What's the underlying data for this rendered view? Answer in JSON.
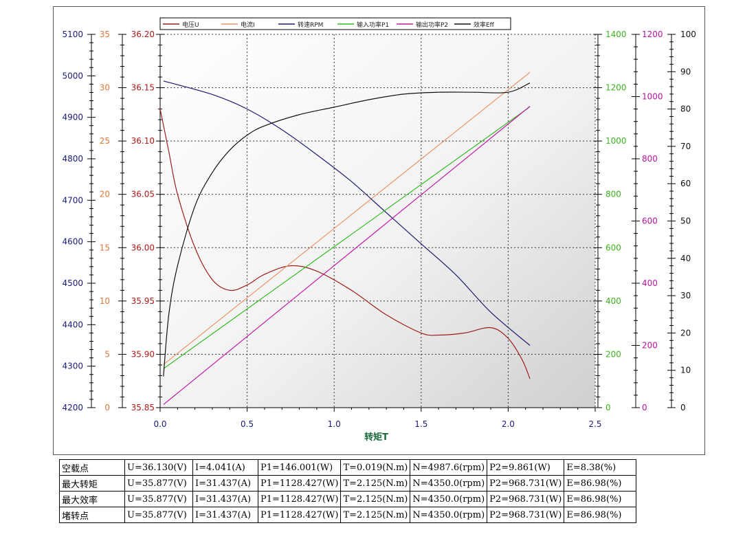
{
  "chart_data": {
    "type": "line",
    "xlabel": "转矩T",
    "xlim": [
      0,
      2.5
    ],
    "x_ticks": [
      "0.0",
      "0.5",
      "1.0",
      "1.5",
      "2.0",
      "2.5"
    ],
    "grid": true,
    "legend_position": "top",
    "axes": [
      {
        "id": "rpm",
        "color": "#1a1a7a",
        "range": [
          4200,
          5100
        ],
        "ticks": [
          "4200",
          "4300",
          "4400",
          "4500",
          "4600",
          "4700",
          "4800",
          "4900",
          "5000",
          "5100"
        ]
      },
      {
        "id": "current",
        "color": "#e07a3a",
        "range": [
          0,
          35
        ],
        "ticks": [
          "0",
          "5",
          "10",
          "15",
          "20",
          "25",
          "30",
          "35"
        ]
      },
      {
        "id": "voltage",
        "color": "#b01818",
        "range": [
          35.85,
          36.2
        ],
        "ticks": [
          "35.85",
          "35.90",
          "35.95",
          "36.00",
          "36.05",
          "36.10",
          "36.15",
          "36.20"
        ]
      },
      {
        "id": "p1",
        "color": "#3cb31e",
        "range": [
          0,
          1400
        ],
        "ticks": [
          "0",
          "200",
          "400",
          "600",
          "800",
          "1000",
          "1200",
          "1400"
        ]
      },
      {
        "id": "p2",
        "color": "#b5139e",
        "range": [
          0,
          1200
        ],
        "ticks": [
          "0",
          "200",
          "400",
          "600",
          "800",
          "1000",
          "1200"
        ]
      },
      {
        "id": "eff",
        "color": "#111111",
        "range": [
          0,
          100
        ],
        "ticks": [
          "0",
          "10",
          "20",
          "30",
          "40",
          "50",
          "60",
          "70",
          "80",
          "90",
          "100"
        ]
      }
    ],
    "series": [
      {
        "name": "电压U",
        "axis": "voltage",
        "color": "#9e1c1c",
        "x": [
          0.0,
          0.05,
          0.1,
          0.2,
          0.3,
          0.4,
          0.5,
          0.6,
          0.75,
          0.9,
          1.1,
          1.3,
          1.5,
          1.6,
          1.75,
          1.9,
          2.0,
          2.08,
          2.125
        ],
        "y": [
          36.13,
          36.09,
          36.05,
          36.0,
          35.97,
          35.96,
          35.965,
          35.975,
          35.983,
          35.978,
          35.96,
          35.937,
          35.92,
          35.918,
          35.92,
          35.925,
          35.915,
          35.895,
          35.877
        ]
      },
      {
        "name": "电流I",
        "axis": "current",
        "color": "#e8956a",
        "x": [
          0.019,
          2.125
        ],
        "y": [
          4.041,
          31.437
        ]
      },
      {
        "name": "转速RPM",
        "axis": "rpm",
        "color": "#1b1b6e",
        "x": [
          0.019,
          0.3,
          0.5,
          0.7,
          0.9,
          1.1,
          1.3,
          1.5,
          1.7,
          1.9,
          2.125
        ],
        "y": [
          4987.6,
          4955,
          4920,
          4870,
          4810,
          4745,
          4670,
          4595,
          4520,
          4430,
          4350.0
        ]
      },
      {
        "name": "输入功率P1",
        "axis": "p1",
        "color": "#33bb22",
        "x": [
          0.019,
          2.125
        ],
        "y": [
          146.001,
          1128.427
        ]
      },
      {
        "name": "输出功率P2",
        "axis": "p2",
        "color": "#c21aa8",
        "x": [
          0.019,
          2.125
        ],
        "y": [
          9.861,
          968.731
        ]
      },
      {
        "name": "效率Eff",
        "axis": "eff",
        "color": "#111111",
        "x": [
          0.019,
          0.05,
          0.1,
          0.2,
          0.3,
          0.4,
          0.5,
          0.6,
          0.8,
          1.0,
          1.2,
          1.4,
          1.6,
          1.8,
          2.0,
          2.125
        ],
        "y": [
          8.38,
          25,
          38,
          54,
          63,
          69,
          73,
          75.5,
          78.5,
          80.5,
          82.5,
          84,
          84.5,
          84.5,
          84.5,
          86.98
        ]
      }
    ]
  },
  "table": {
    "rows": [
      [
        "空载点",
        "U=36.130(V)",
        "I=4.041(A)",
        "P1=146.001(W)",
        "T=0.019(N.m)",
        "N=4987.6(rpm)",
        "P2=9.861(W)",
        "E=8.38(%)"
      ],
      [
        "最大转矩",
        "U=35.877(V)",
        "I=31.437(A)",
        "P1=1128.427(W)",
        "T=2.125(N.m)",
        "N=4350.0(rpm)",
        "P2=968.731(W)",
        "E=86.98(%)"
      ],
      [
        "最大效率",
        "U=35.877(V)",
        "I=31.437(A)",
        "P1=1128.427(W)",
        "T=2.125(N.m)",
        "N=4350.0(rpm)",
        "P2=968.731(W)",
        "E=86.98(%)"
      ],
      [
        "堵转点",
        "U=35.877(V)",
        "I=31.437(A)",
        "P1=1128.427(W)",
        "T=2.125(N.m)",
        "N=4350.0(rpm)",
        "P2=968.731(W)",
        "E=86.98(%)"
      ]
    ]
  }
}
